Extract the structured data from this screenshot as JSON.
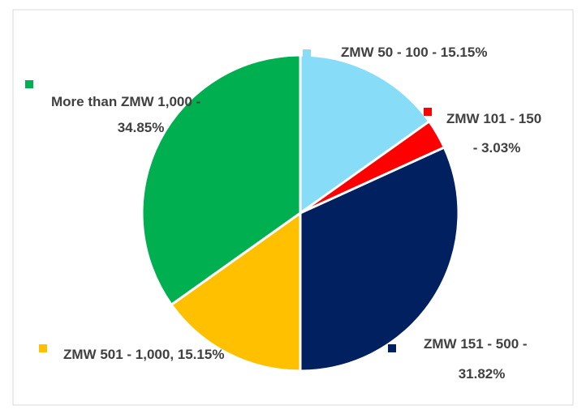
{
  "chart_data": {
    "type": "pie",
    "categories": [
      "ZMW 50 - 100 - 15.15%",
      "ZMW 101 - 150 - 3.03%",
      "ZMW 151 - 500 - 31.82%",
      "ZMW 501 - 1,000, 15.15%",
      "More than ZMW 1,000 - 34.85%"
    ],
    "values": [
      15.15,
      3.03,
      31.82,
      15.15,
      34.85
    ],
    "colors": [
      "#87dcf8",
      "#ff0000",
      "#002060",
      "#ffc000",
      "#00b050"
    ]
  }
}
